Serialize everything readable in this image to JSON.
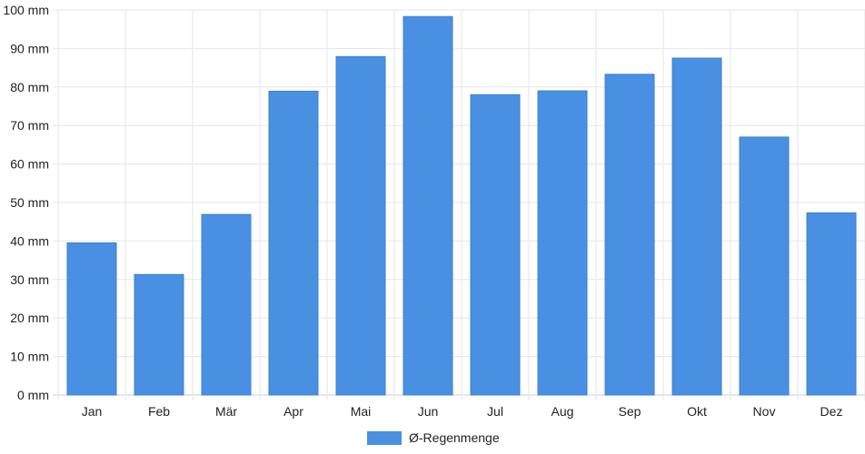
{
  "chart_data": {
    "type": "bar",
    "categories": [
      "Jan",
      "Feb",
      "Mär",
      "Apr",
      "Mai",
      "Jun",
      "Jul",
      "Aug",
      "Sep",
      "Okt",
      "Nov",
      "Dez"
    ],
    "series": [
      {
        "name": "Ø-Regenmenge",
        "color": "#4a90e2",
        "values": [
          39.5,
          31.3,
          46.9,
          78.9,
          87.9,
          98.3,
          78.0,
          79.0,
          83.3,
          87.5,
          67.0,
          47.3
        ]
      }
    ],
    "y_unit": "mm",
    "ylim": [
      0,
      100
    ],
    "y_ticks": [
      "0 mm",
      "10 mm",
      "20 mm",
      "30 mm",
      "40 mm",
      "50 mm",
      "60 mm",
      "70 mm",
      "80 mm",
      "90 mm",
      "100 mm"
    ],
    "grid": true,
    "legend_position": "bottom-center"
  }
}
